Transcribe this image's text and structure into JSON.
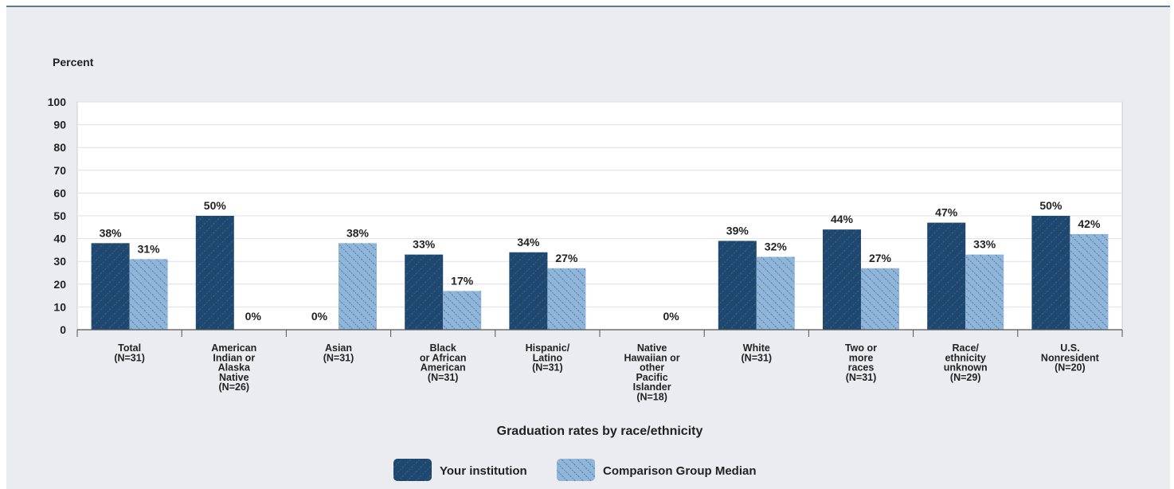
{
  "chart_data": {
    "type": "bar",
    "ylabel": "Percent",
    "xlabel": "Graduation rates by race/ethnicity",
    "ylim": [
      0,
      100
    ],
    "yticks": [
      0,
      10,
      20,
      30,
      40,
      50,
      60,
      70,
      80,
      90,
      100
    ],
    "grid": true,
    "legend_position": "bottom",
    "categories": [
      [
        "Total",
        "(N=31)"
      ],
      [
        "American",
        "Indian or",
        "Alaska",
        "Native",
        "(N=26)"
      ],
      [
        "Asian",
        "(N=31)"
      ],
      [
        "Black",
        "or African",
        "American",
        "(N=31)"
      ],
      [
        "Hispanic/",
        "Latino",
        "(N=31)"
      ],
      [
        "Native",
        "Hawaiian or",
        "other",
        "Pacific",
        "Islander",
        "(N=18)"
      ],
      [
        "White",
        "(N=31)"
      ],
      [
        "Two or",
        "more",
        "races",
        "(N=31)"
      ],
      [
        "Race/",
        "ethnicity",
        "unknown",
        "(N=29)"
      ],
      [
        "U.S.",
        "Nonresident",
        "(N=20)"
      ]
    ],
    "series": [
      {
        "name": "Your institution",
        "color": "#1f4773",
        "values": [
          38,
          50,
          0,
          33,
          34,
          null,
          39,
          44,
          47,
          50
        ],
        "labels": [
          "38%",
          "50%",
          "0%",
          "33%",
          "34%",
          "",
          "39%",
          "44%",
          "47%",
          "50%"
        ]
      },
      {
        "name": "Comparison Group Median",
        "color": "#8fb6da",
        "pattern": "hatched",
        "values": [
          31,
          0,
          38,
          17,
          27,
          0,
          32,
          27,
          33,
          42
        ],
        "labels": [
          "31%",
          "0%",
          "38%",
          "17%",
          "27%",
          "0%",
          "32%",
          "27%",
          "33%",
          "42%"
        ]
      }
    ]
  }
}
